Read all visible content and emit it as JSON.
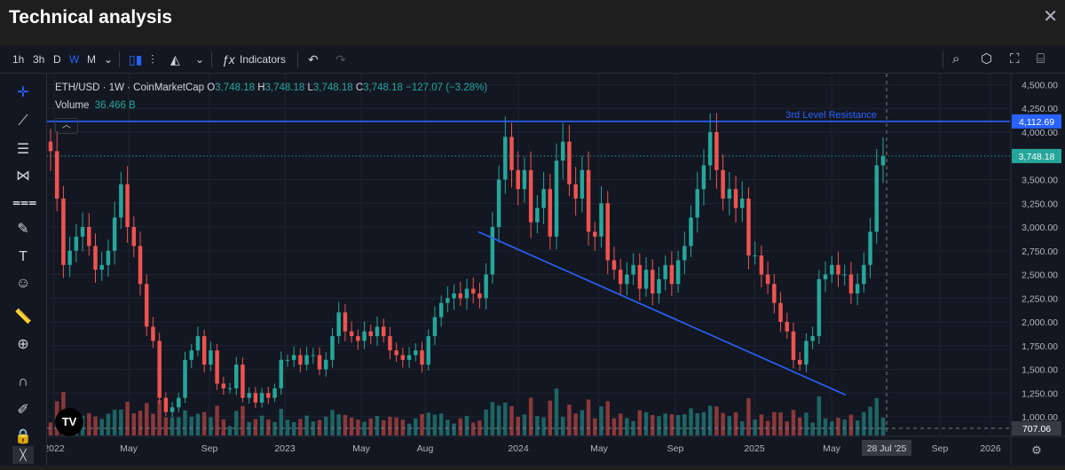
{
  "window": {
    "title": "Technical analysis"
  },
  "toolbar": {
    "intervals": [
      "1h",
      "3h",
      "D",
      "W",
      "M"
    ],
    "active_interval": "W",
    "indicators_label": "Indicators"
  },
  "legend": {
    "symbol": "ETH/USD · 1W · CoinMarketCap",
    "open_label": "O",
    "open": "3,748.18",
    "high_label": "H",
    "high": "3,748.18",
    "low_label": "L",
    "low": "3,748.18",
    "close_label": "C",
    "close": "3,748.18",
    "change": "−127.07 (−3.28%)",
    "volume_label": "Volume",
    "volume": "36.466 B"
  },
  "colors": {
    "up": "#26a69a",
    "down": "#ef5350",
    "line": "#2962ff",
    "bg": "#131722"
  },
  "chart_data": {
    "type": "candlestick",
    "price_axis": {
      "ticks": [
        1000,
        1250,
        1500,
        1750,
        2000,
        2250,
        2500,
        2750,
        3000,
        3250,
        3500,
        3750,
        4000,
        4250,
        4500
      ],
      "range": [
        860,
        4570
      ]
    },
    "time_axis": [
      "2022",
      "May",
      "Sep",
      "2023",
      "May",
      "Aug",
      "2024",
      "May",
      "Sep",
      "2025",
      "May",
      "28 Jul '25",
      "Sep",
      "2026"
    ],
    "current_price_label": "3,748.18",
    "resistance": {
      "label": "3rd Level Resistance",
      "value": 4112.69,
      "value_label": "4,112.69"
    },
    "volume_marker_label": "707.06",
    "trendline": {
      "from": [
        "2023-10",
        2950
      ],
      "to": [
        "2025-07",
        1230
      ]
    },
    "closes": [
      3800,
      3300,
      2600,
      2750,
      2900,
      3000,
      2800,
      2550,
      2600,
      2750,
      3100,
      3450,
      3000,
      2800,
      2400,
      1950,
      1800,
      1200,
      1050,
      1100,
      1200,
      1600,
      1700,
      1850,
      1550,
      1700,
      1350,
      1300,
      1300,
      1550,
      1200,
      1250,
      1150,
      1250,
      1200,
      1300,
      1600,
      1600,
      1650,
      1550,
      1650,
      1650,
      1500,
      1600,
      1850,
      2100,
      1900,
      1850,
      1800,
      1900,
      1850,
      1950,
      1850,
      1700,
      1650,
      1600,
      1650,
      1700,
      1550,
      1850,
      2050,
      2200,
      2250,
      2300,
      2250,
      2350,
      2300,
      2250,
      2500,
      3000,
      3500,
      3950,
      3600,
      3400,
      3600,
      3050,
      3200,
      3400,
      2900,
      3700,
      3900,
      3450,
      3300,
      3600,
      2950,
      2900,
      3250,
      2650,
      2550,
      2400,
      2500,
      2600,
      2350,
      2550,
      2300,
      2450,
      2600,
      2400,
      2650,
      2800,
      3100,
      3400,
      3650,
      4000,
      3600,
      3300,
      3400,
      3200,
      3300,
      2700,
      2700,
      2500,
      2400,
      2200,
      2000,
      1900,
      1600,
      1550,
      1800,
      1850,
      2450,
      2500,
      2600,
      2500,
      2500,
      2300,
      2400,
      2600,
      2950,
      3650,
      3748
    ]
  }
}
